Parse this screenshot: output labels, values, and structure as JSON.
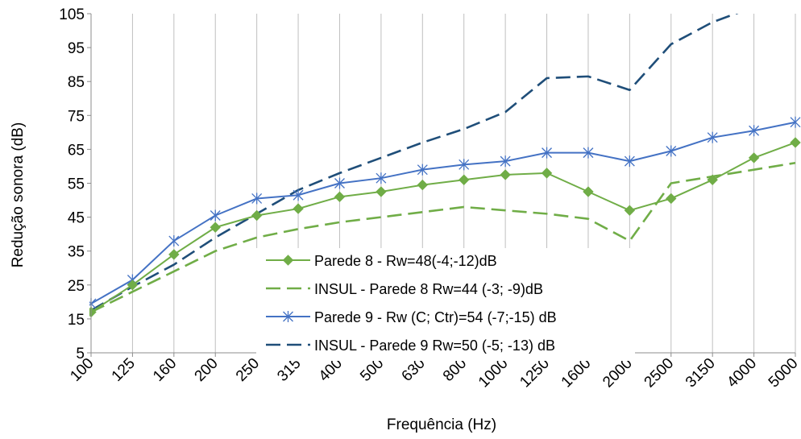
{
  "chart_data": {
    "type": "line",
    "xlabel": "Frequência (Hz)",
    "ylabel": "Redução sonora (dB)",
    "ylim": [
      5,
      105
    ],
    "yticks": [
      5,
      15,
      25,
      35,
      45,
      55,
      65,
      75,
      85,
      95,
      105
    ],
    "grid": "vertical",
    "legend_position": "bottom-center",
    "categories": [
      "100",
      "125",
      "160",
      "200",
      "250",
      "315",
      "400",
      "500",
      "630",
      "800",
      "1000",
      "1250",
      "1600",
      "2000",
      "2500",
      "3150",
      "4000",
      "5000"
    ],
    "series": [
      {
        "name": "Parede 8 - Rw=48(-4;-12)dB",
        "color": "#70AD47",
        "line_style": "solid",
        "marker": "diamond",
        "values": [
          17,
          25,
          34,
          42,
          45.5,
          47.5,
          51,
          52.5,
          54.5,
          56,
          57.5,
          58,
          52.5,
          47,
          50.5,
          56,
          62.5,
          67
        ]
      },
      {
        "name": "INSUL  - Parede 8 Rw=44 (-3; -9)dB",
        "color": "#70AD47",
        "line_style": "dashed",
        "marker": "none",
        "values": [
          17,
          23,
          29,
          35,
          39,
          41.5,
          43.5,
          45,
          46.5,
          48,
          47,
          46,
          44.5,
          38,
          55,
          57,
          59,
          61
        ]
      },
      {
        "name": "Parede 9 - Rw (C; Ctr)=54 (-7;-15) dB",
        "color": "#4472C4",
        "line_style": "solid",
        "marker": "asterisk",
        "values": [
          19.5,
          26.5,
          38,
          45.5,
          50.5,
          51.5,
          55,
          56.5,
          59,
          60.5,
          61.5,
          64,
          64,
          61.5,
          64.5,
          68.5,
          70.5,
          73
        ]
      },
      {
        "name": "INSUL - Parede 9 Rw=50 (-5; -13) dB",
        "color": "#1F4E79",
        "line_style": "dashed",
        "marker": "none",
        "values": [
          17.5,
          24.5,
          31,
          39,
          46,
          53,
          58,
          62.5,
          67,
          71,
          76,
          86,
          86.5,
          82.5,
          96,
          102.5,
          107,
          null
        ]
      }
    ]
  }
}
